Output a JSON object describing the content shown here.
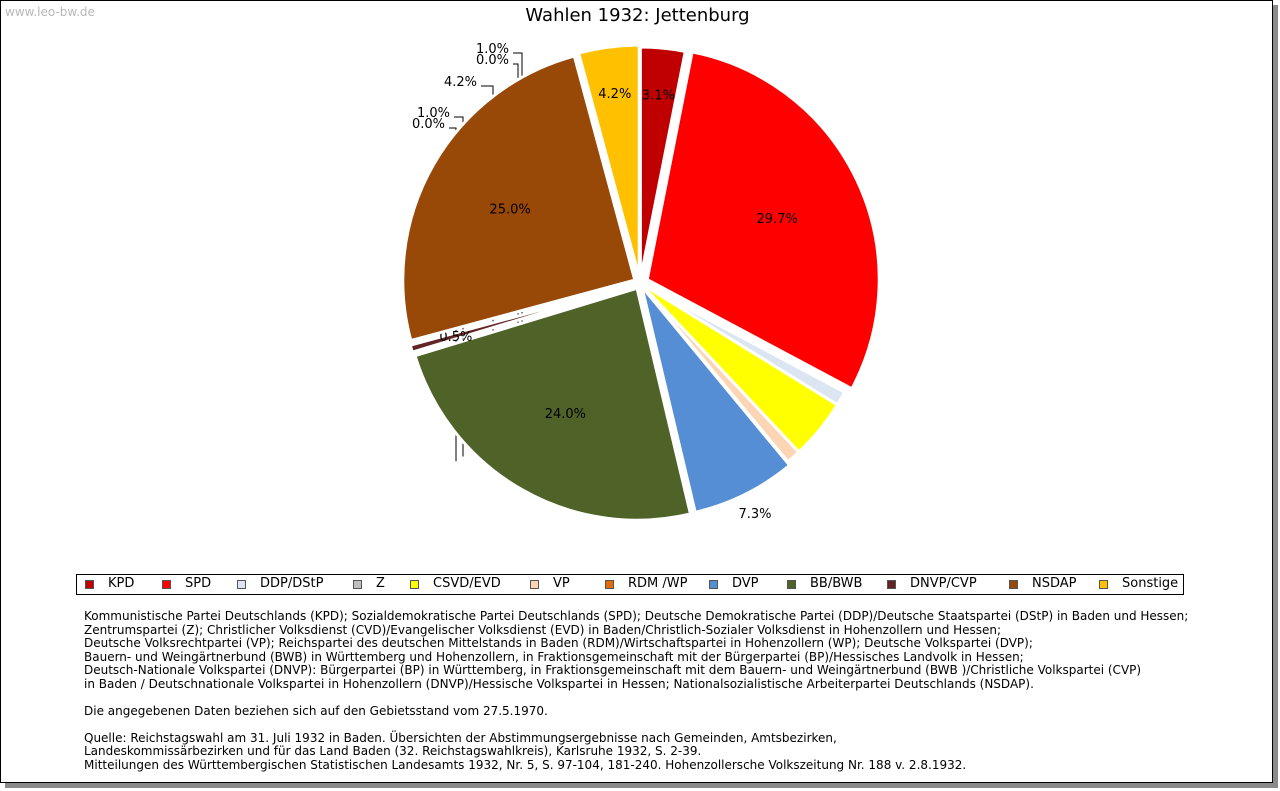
{
  "watermark": "www.leo-bw.de",
  "chart_data": {
    "type": "pie",
    "title": "Wahlen 1932: Jettenburg",
    "start_angle_deg": 90,
    "direction": "clockwise",
    "slices": [
      {
        "name": "KPD",
        "value": 3.1,
        "label": "3.1%",
        "color": "#c00000"
      },
      {
        "name": "SPD",
        "value": 29.7,
        "label": "29.7%",
        "color": "#ff0000"
      },
      {
        "name": "DDP/DStP",
        "value": 1.0,
        "label": "1.0%",
        "color": "#dce6f2"
      },
      {
        "name": "Z",
        "value": 0.0,
        "label": "0.0%",
        "color": "#bfbfbf"
      },
      {
        "name": "CSVD/EVD",
        "value": 4.2,
        "label": "4.2%",
        "color": "#ffff00"
      },
      {
        "name": "VP",
        "value": 1.0,
        "label": "1.0%",
        "color": "#fcd5b5"
      },
      {
        "name": "RDM /WP",
        "value": 0.0,
        "label": "0.0%",
        "color": "#e36c09"
      },
      {
        "name": "DVP",
        "value": 7.3,
        "label": "7.3%",
        "color": "#558ed5"
      },
      {
        "name": "BB/BWB",
        "value": 24.0,
        "label": "24.0%",
        "color": "#4f6228"
      },
      {
        "name": "DNVP/CVP",
        "value": 0.5,
        "label": "0.5%",
        "color": "#632523"
      },
      {
        "name": "NSDAP",
        "value": 25.0,
        "label": "25.0%",
        "color": "#984807"
      },
      {
        "name": "Sonstige",
        "value": 4.2,
        "label": "4.2%",
        "color": "#ffc000"
      }
    ]
  },
  "legend": [
    {
      "label": "KPD",
      "color": "#c00000"
    },
    {
      "label": "SPD",
      "color": "#ff0000"
    },
    {
      "label": "DDP/DStP",
      "color": "#dce6f2"
    },
    {
      "label": "Z",
      "color": "#bfbfbf"
    },
    {
      "label": "CSVD/EVD",
      "color": "#ffff00"
    },
    {
      "label": "VP",
      "color": "#fcd5b5"
    },
    {
      "label": "RDM /WP",
      "color": "#e36c09"
    },
    {
      "label": "DVP",
      "color": "#558ed5"
    },
    {
      "label": "BB/BWB",
      "color": "#4f6228"
    },
    {
      "label": "DNVP/CVP",
      "color": "#632523"
    },
    {
      "label": "NSDAP",
      "color": "#984807"
    },
    {
      "label": "Sonstige",
      "color": "#ffc000"
    }
  ],
  "notes": {
    "abbreviations": [
      "Kommunistische Partei Deutschlands (KPD); Sozialdemokratische Partei Deutschlands (SPD); Deutsche Demokratische Partei (DDP)/Deutsche Staatspartei (DStP) in Baden und Hessen;",
      "Zentrumspartei (Z); Christlicher Volksdienst (CVD)/Evangelischer Volksdienst (EVD) in Baden/Christlich-Sozialer Volksdienst in Hohenzollern und Hessen;",
      "Deutsche Volksrechtpartei (VP); Reichspartei des deutschen Mittelstands in Baden (RDM)/Wirtschaftspartei in Hohenzollern (WP); Deutsche Volkspartei (DVP);",
      "Bauern- und Weingärtnerbund (BWB) in Württemberg und Hohenzollern, in Fraktionsgemeinschaft mit der Bürgerpartei (BP)/Hessisches Landvolk in Hessen;",
      "Deutsch-Nationale Volkspartei (DNVP): Bürgerpartei (BP) in Württemberg, in Fraktionsgemeinschaft mit dem Bauern- und Weingärtnerbund (BWB )/Christliche Volkspartei (CVP)",
      "in Baden / Deutschnationale Volkspartei in Hohenzollern (DNVP)/Hessische Volkspartei in Hessen; Nationalsozialistische Arbeiterpartei Deutschlands (NSDAP)."
    ],
    "territory": "Die angegebenen Daten beziehen sich auf den Gebietsstand vom 27.5.1970.",
    "source": [
      "Quelle: Reichstagswahl am 31. Juli 1932 in Baden. Übersichten der Abstimmungsergebnisse nach Gemeinden, Amtsbezirken,",
      "Landeskommissärbezirken und für das Land Baden (32. Reichstagswahlkreis), Karlsruhe 1932, S. 2-39.",
      "Mitteilungen des Württembergischen Statistischen Landesamts 1932, Nr. 5, S. 97-104, 181-240. Hohenzollersche Volkszeitung Nr. 188 v. 2.8.1932."
    ]
  }
}
